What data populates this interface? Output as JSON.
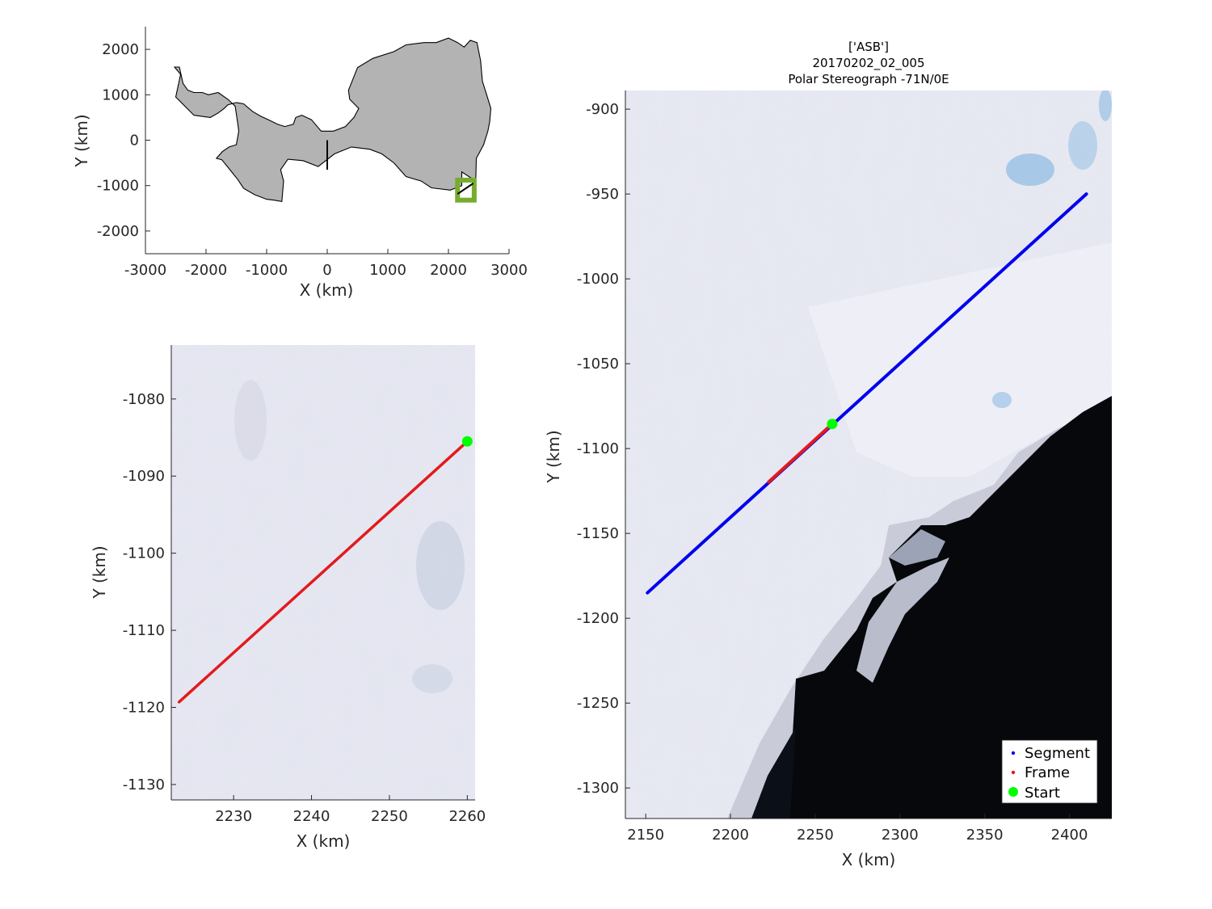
{
  "chart_data": [
    {
      "id": "overview",
      "type": "map",
      "xlabel": "X (km)",
      "ylabel": "Y (km)",
      "xlim": [
        -3000,
        3000
      ],
      "ylim": [
        -2500,
        2500
      ],
      "xticks": [
        -3000,
        -2000,
        -1000,
        0,
        1000,
        2000,
        3000
      ],
      "yticks": [
        -2000,
        -1000,
        0,
        1000,
        2000
      ],
      "colors": {
        "land": "#b3b3b3",
        "outline": "#000000",
        "box": "#77ac30"
      },
      "series": [
        {
          "role": "outline",
          "x": [
            -2520,
            -2440,
            -2380,
            -2300,
            -2200,
            -2060,
            -1960,
            -1800,
            -1640,
            -1520,
            -1480,
            -1460,
            -1500,
            -1620,
            -1730,
            -1830,
            -1740,
            -1600,
            -1480,
            -1380,
            -1200,
            -1000,
            -880,
            -750,
            -720,
            -770,
            -650,
            -400,
            -150,
            120,
            400,
            700,
            900,
            1100,
            1300,
            1550,
            1720,
            2030,
            2220,
            2220,
            2450,
            2460,
            2580,
            2650,
            2680,
            2700,
            2630,
            2560,
            2530,
            2470,
            2360,
            2260,
            2150,
            2000,
            1800,
            1600,
            1300,
            1100,
            750,
            500,
            350,
            370,
            520,
            440,
            300,
            100,
            -100,
            -260,
            -420,
            -520,
            -560,
            -700,
            -820,
            -970,
            -1100,
            -1230,
            -1380,
            -1500,
            -1640,
            -1700,
            -1800,
            -1930,
            -2200,
            -2500,
            -2420,
            -2520
          ],
          "y": [
            1610,
            1610,
            1250,
            1100,
            1050,
            1050,
            1000,
            1050,
            900,
            750,
            400,
            200,
            -100,
            -150,
            -250,
            -400,
            -430,
            -660,
            -860,
            -1060,
            -1200,
            -1300,
            -1320,
            -1350,
            -900,
            -650,
            -420,
            -450,
            -580,
            -300,
            -150,
            -200,
            -300,
            -500,
            -800,
            -900,
            -1050,
            -1100,
            -1000,
            -700,
            -900,
            -400,
            -100,
            200,
            400,
            700,
            1000,
            1300,
            1750,
            2150,
            2200,
            2050,
            2150,
            2250,
            2150,
            2150,
            2100,
            1950,
            1800,
            1600,
            1100,
            900,
            700,
            500,
            300,
            200,
            200,
            450,
            550,
            500,
            350,
            300,
            350,
            450,
            530,
            630,
            800,
            830,
            780,
            700,
            600,
            500,
            550,
            950,
            1450,
            1610
          ]
        },
        {
          "role": "track",
          "x": [
            2150,
            2410
          ],
          "y": [
            -1185,
            -950
          ]
        },
        {
          "role": "box",
          "x": [
            2150,
            2425
          ],
          "y": [
            -1320,
            -880
          ]
        }
      ]
    },
    {
      "id": "frame-zoom",
      "type": "line",
      "xlabel": "X (km)",
      "ylabel": "Y (km)",
      "xlim": [
        2222,
        2261
      ],
      "ylim": [
        -1132,
        -1073
      ],
      "xticks": [
        2230,
        2240,
        2250,
        2260
      ],
      "yticks": [
        -1130,
        -1120,
        -1110,
        -1100,
        -1090,
        -1080
      ],
      "series": [
        {
          "role": "frame",
          "color": "#e31a1c",
          "x": [
            2223,
            2260
          ],
          "y": [
            -1119.3,
            -1085.5
          ]
        },
        {
          "role": "start",
          "color": "#00ff00",
          "x": [
            2260
          ],
          "y": [
            -1085.5
          ]
        }
      ]
    },
    {
      "id": "segment",
      "type": "line",
      "title": [
        "['ASB']",
        "20170202_02_005",
        "Polar Stereograph -71N/0E"
      ],
      "xlabel": "X (km)",
      "ylabel": "Y (km)",
      "xlim": [
        2138,
        2425
      ],
      "ylim": [
        -1318,
        -889
      ],
      "xticks": [
        2150,
        2200,
        2250,
        2300,
        2350,
        2400
      ],
      "yticks": [
        -1300,
        -1250,
        -1200,
        -1150,
        -1100,
        -1050,
        -1000,
        -950,
        -900
      ],
      "legend": {
        "position": "bottom-right",
        "entries": [
          "Segment",
          "Frame",
          "Start"
        ]
      },
      "series": [
        {
          "role": "segment",
          "color": "#0000ee",
          "x": [
            2151,
            2410
          ],
          "y": [
            -1185,
            -950
          ]
        },
        {
          "role": "frame",
          "color": "#e31a1c",
          "x": [
            2222.5,
            2260
          ],
          "y": [
            -1119.7,
            -1085.5
          ]
        },
        {
          "role": "start",
          "color": "#00ff00",
          "x": [
            2260
          ],
          "y": [
            -1085.5
          ]
        }
      ]
    }
  ]
}
